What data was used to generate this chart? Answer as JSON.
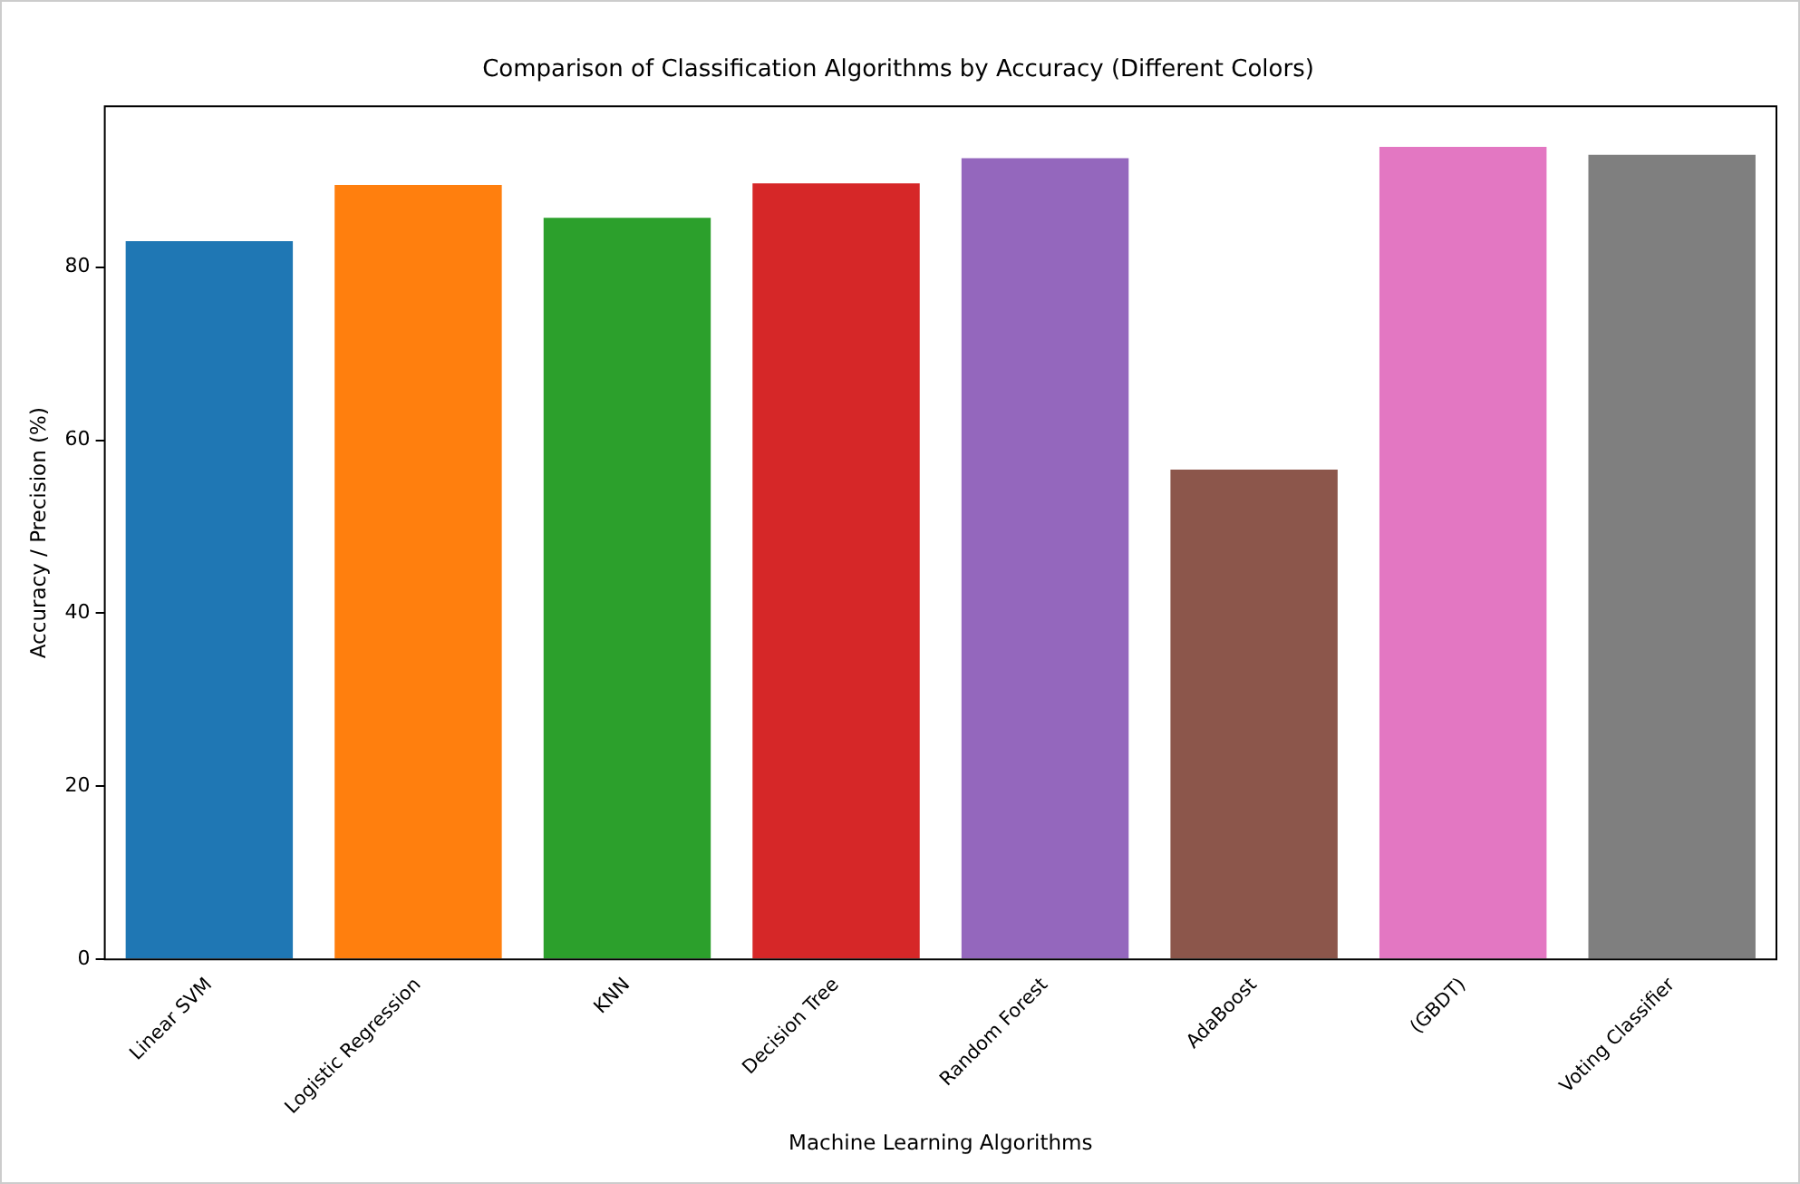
{
  "chart_data": {
    "type": "bar",
    "title": "Comparison of Classification Algorithms by Accuracy (Different Colors)",
    "xlabel": "Machine Learning Algorithms",
    "ylabel": "Accuracy / Precision (%)",
    "categories": [
      "Linear SVM",
      "Logistic Regression",
      "KNN",
      "Decision Tree",
      "Random Forest",
      "AdaBoost",
      "(GBDT)",
      "Voting Classifier"
    ],
    "values": [
      83,
      89.5,
      85.7,
      89.7,
      92.6,
      56.6,
      93.9,
      93
    ],
    "colors": [
      "#1f77b4",
      "#ff7f0e",
      "#2ca02c",
      "#d62728",
      "#9467bd",
      "#8c564b",
      "#e377c2",
      "#7f7f7f"
    ],
    "ylim": [
      0,
      98.6
    ],
    "yticks": [
      0,
      20,
      40,
      60,
      80
    ],
    "grid": false,
    "legend": false
  }
}
